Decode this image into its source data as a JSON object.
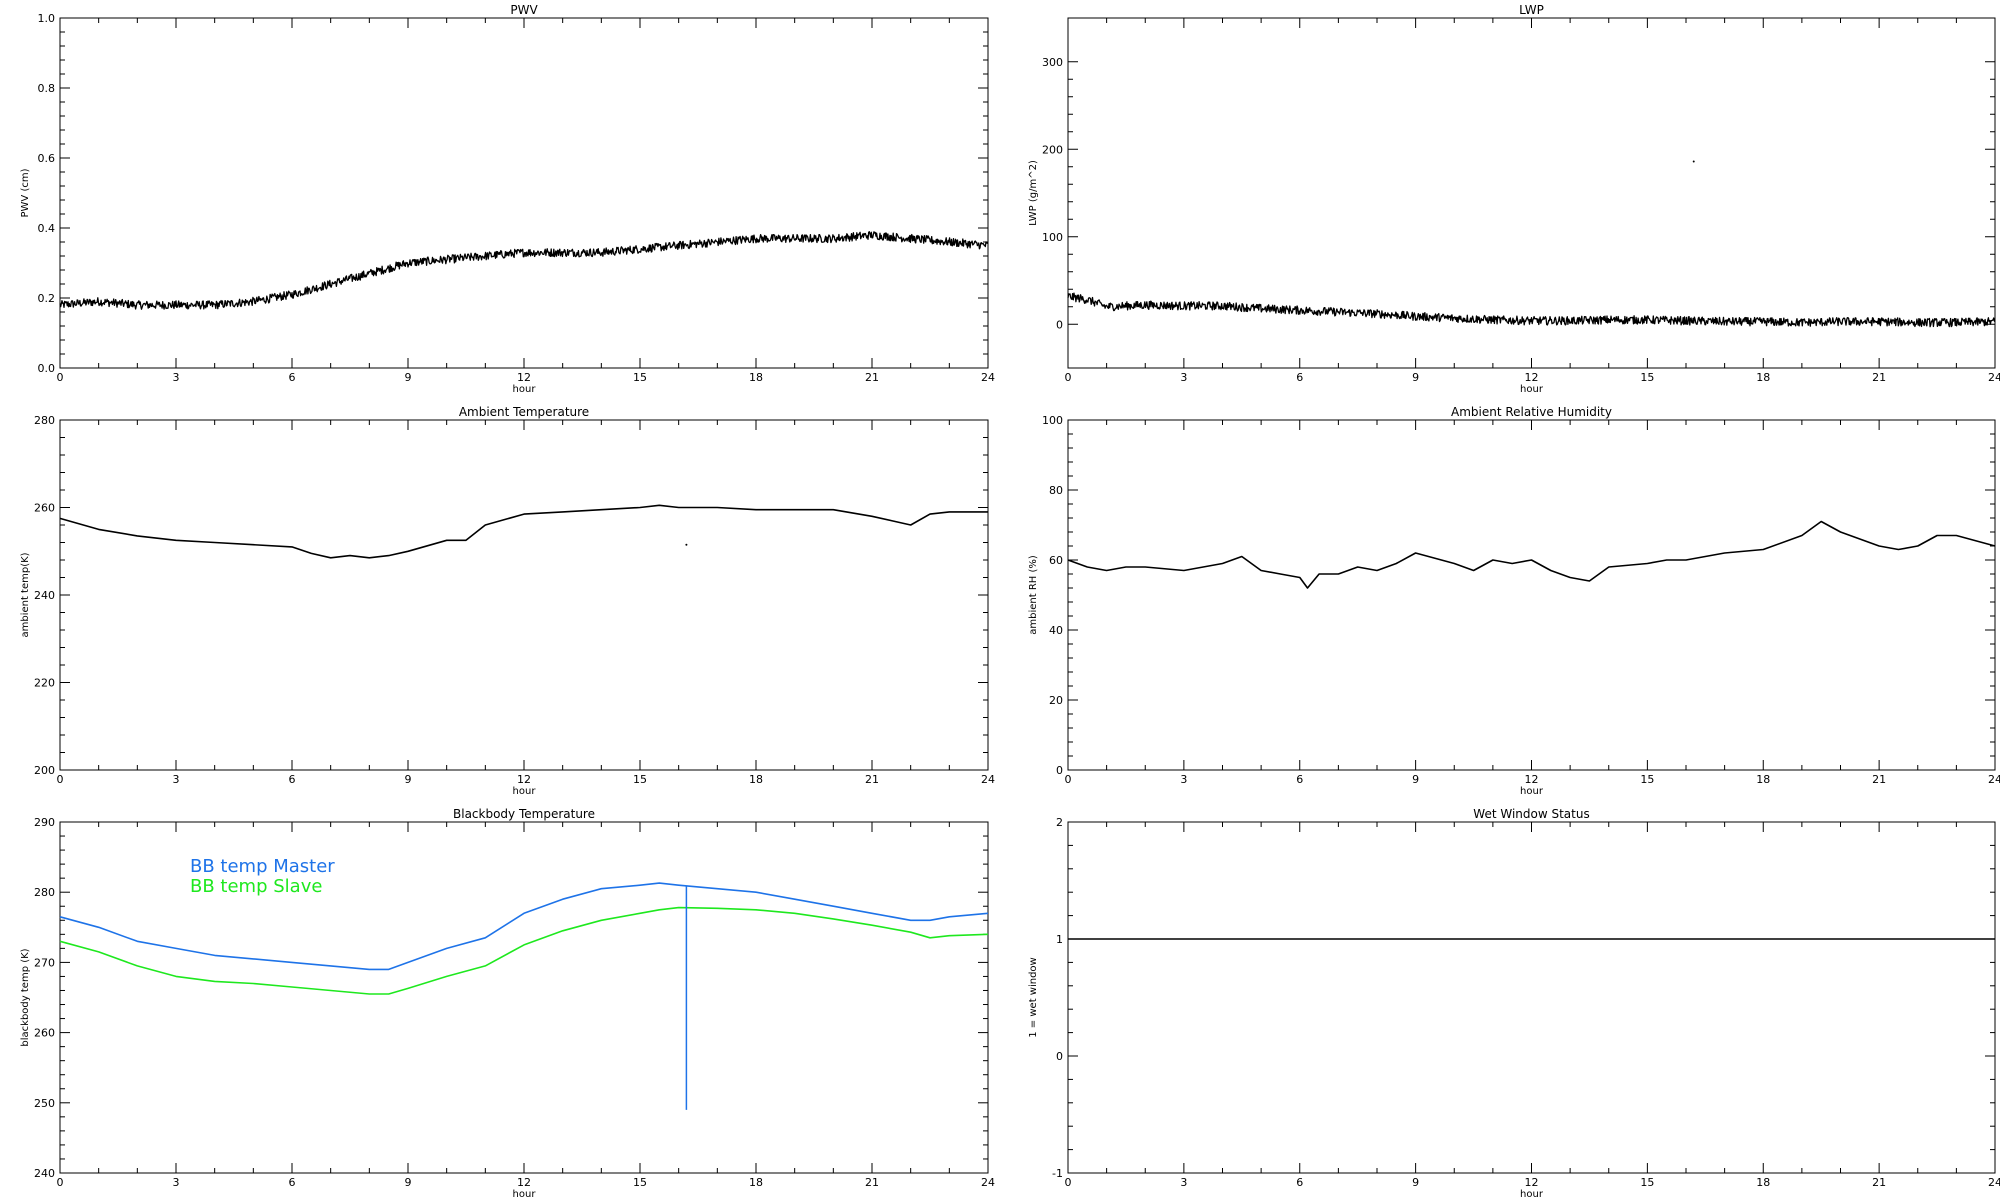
{
  "figure": {
    "background": "#ffffff"
  },
  "chart_data": [
    {
      "type": "line",
      "title": "PWV",
      "xlabel": "hour",
      "ylabel": "PWV (cm)",
      "xlim": [
        0,
        24
      ],
      "ylim": [
        0,
        1
      ],
      "xticks": [
        0,
        3,
        6,
        9,
        12,
        15,
        18,
        21,
        24
      ],
      "yticks": [
        "0.0",
        "0.2",
        "0.4",
        "0.6",
        "0.8",
        "1.0"
      ],
      "noisy": true,
      "series": [
        {
          "color": "#000000",
          "x": [
            0,
            1,
            2,
            3,
            4,
            5,
            6,
            7,
            8,
            9,
            10,
            11,
            12,
            13,
            14,
            15,
            16,
            17,
            18,
            19,
            20,
            21,
            22,
            23,
            24
          ],
          "y": [
            0.18,
            0.19,
            0.18,
            0.18,
            0.18,
            0.19,
            0.21,
            0.24,
            0.27,
            0.3,
            0.31,
            0.32,
            0.33,
            0.33,
            0.33,
            0.34,
            0.35,
            0.36,
            0.37,
            0.37,
            0.37,
            0.38,
            0.37,
            0.36,
            0.35
          ]
        }
      ]
    },
    {
      "type": "line",
      "title": "LWP",
      "xlabel": "hour",
      "ylabel": "LWP (g/m^2)",
      "xlim": [
        0,
        24
      ],
      "ylim": [
        -50,
        350
      ],
      "xticks": [
        0,
        3,
        6,
        9,
        12,
        15,
        18,
        21,
        24
      ],
      "yticks": [
        "0",
        "100",
        "200",
        "300"
      ],
      "noisy": true,
      "outliers": [
        [
          16.2,
          186
        ]
      ],
      "series": [
        {
          "color": "#000000",
          "x": [
            0,
            0.5,
            1,
            2,
            3,
            4,
            5,
            6,
            7,
            8,
            9,
            10,
            11,
            12,
            13,
            14,
            15,
            16,
            17,
            18,
            19,
            20,
            21,
            22,
            23,
            24
          ],
          "y": [
            32,
            28,
            20,
            22,
            21,
            21,
            18,
            16,
            14,
            12,
            9,
            7,
            5,
            4,
            4,
            5,
            5,
            4,
            3,
            3,
            2,
            3,
            3,
            2,
            2,
            3
          ]
        }
      ]
    },
    {
      "type": "line",
      "title": "Ambient Temperature",
      "xlabel": "hour",
      "ylabel": "ambient temp(K)",
      "xlim": [
        0,
        24
      ],
      "ylim": [
        200,
        280
      ],
      "xticks": [
        0,
        3,
        6,
        9,
        12,
        15,
        18,
        21,
        24
      ],
      "yticks": [
        "200",
        "220",
        "240",
        "260",
        "280"
      ],
      "outliers": [
        [
          16.2,
          251.5
        ]
      ],
      "series": [
        {
          "color": "#000000",
          "x": [
            0,
            1,
            2,
            3,
            4,
            5,
            6,
            6.5,
            7,
            7.5,
            8,
            8.5,
            9,
            10,
            10.5,
            11,
            12,
            13,
            14,
            15,
            15.5,
            16,
            17,
            18,
            19,
            20,
            21,
            21.5,
            22,
            22.5,
            23,
            24
          ],
          "y": [
            257.5,
            255,
            253.5,
            252.5,
            252,
            251.5,
            251,
            249.5,
            248.5,
            249,
            248.5,
            249,
            250,
            252.5,
            252.5,
            256,
            258.5,
            259,
            259.5,
            260,
            260.5,
            260,
            260,
            259.5,
            259.5,
            259.5,
            258,
            257,
            256,
            258.5,
            259,
            259
          ]
        }
      ]
    },
    {
      "type": "line",
      "title": "Ambient Relative Humidity",
      "xlabel": "hour",
      "ylabel": "ambient RH (%)",
      "xlim": [
        0,
        24
      ],
      "ylim": [
        0,
        100
      ],
      "xticks": [
        0,
        3,
        6,
        9,
        12,
        15,
        18,
        21,
        24
      ],
      "yticks": [
        "0",
        "20",
        "40",
        "60",
        "80",
        "100"
      ],
      "series": [
        {
          "color": "#000000",
          "x": [
            0,
            0.5,
            1,
            1.5,
            2,
            3,
            4,
            4.5,
            5,
            5.5,
            6,
            6.2,
            6.5,
            7,
            7.5,
            8,
            8.5,
            9,
            10,
            10.5,
            11,
            11.5,
            12,
            12.5,
            13,
            13.5,
            14,
            15,
            15.5,
            16,
            17,
            18,
            19,
            19.5,
            20,
            21,
            21.5,
            22,
            22.5,
            23,
            24
          ],
          "y": [
            60,
            58,
            57,
            58,
            58,
            57,
            59,
            61,
            57,
            56,
            55,
            52,
            56,
            56,
            58,
            57,
            59,
            62,
            59,
            57,
            60,
            59,
            60,
            57,
            55,
            54,
            58,
            59,
            60,
            60,
            62,
            63,
            67,
            71,
            68,
            64,
            63,
            64,
            67,
            67,
            64
          ]
        }
      ]
    },
    {
      "type": "line",
      "title": "Blackbody Temperature",
      "xlabel": "hour",
      "ylabel": "blackbody temp (K)",
      "xlim": [
        0,
        24
      ],
      "ylim": [
        240,
        290
      ],
      "xticks": [
        0,
        3,
        6,
        9,
        12,
        15,
        18,
        21,
        24
      ],
      "yticks": [
        "240",
        "250",
        "260",
        "270",
        "280",
        "290"
      ],
      "legend": "top-left",
      "spike": {
        "series": 0,
        "x": 16.2,
        "y_min": 249
      },
      "series": [
        {
          "name": "BB temp Master",
          "color": "#1e73e8",
          "x": [
            0,
            1,
            2,
            3,
            4,
            5,
            6,
            7,
            8,
            8.5,
            9,
            10,
            11,
            12,
            13,
            14,
            15,
            15.5,
            16,
            17,
            18,
            19,
            20,
            21,
            22,
            22.5,
            23,
            24
          ],
          "y": [
            276.5,
            275,
            273,
            272,
            271,
            270.5,
            270,
            269.5,
            269,
            269,
            270,
            272,
            273.5,
            277,
            279,
            280.5,
            281,
            281.3,
            281,
            280.5,
            280,
            279,
            278,
            277,
            276,
            276,
            276.5,
            277
          ]
        },
        {
          "name": "BB temp Slave",
          "color": "#1ee81e",
          "x": [
            0,
            1,
            2,
            3,
            4,
            5,
            6,
            7,
            8,
            8.5,
            9,
            10,
            11,
            12,
            13,
            14,
            15,
            15.5,
            16,
            17,
            18,
            19,
            20,
            21,
            22,
            22.5,
            23,
            24
          ],
          "y": [
            273,
            271.5,
            269.5,
            268,
            267.3,
            267,
            266.5,
            266,
            265.5,
            265.5,
            266.3,
            268,
            269.5,
            272.5,
            274.5,
            276,
            277,
            277.5,
            277.8,
            277.7,
            277.5,
            277,
            276.2,
            275.3,
            274.3,
            273.5,
            273.8,
            274
          ]
        }
      ]
    },
    {
      "type": "line",
      "title": "Wet Window Status",
      "xlabel": "hour",
      "ylabel": "1 = wet window",
      "xlim": [
        0,
        24
      ],
      "ylim": [
        -1,
        2
      ],
      "xticks": [
        0,
        3,
        6,
        9,
        12,
        15,
        18,
        21,
        24
      ],
      "yticks": [
        "-1",
        "0",
        "1",
        "2"
      ],
      "series": [
        {
          "color": "#000000",
          "x": [
            0,
            24
          ],
          "y": [
            1,
            1
          ]
        }
      ]
    }
  ]
}
